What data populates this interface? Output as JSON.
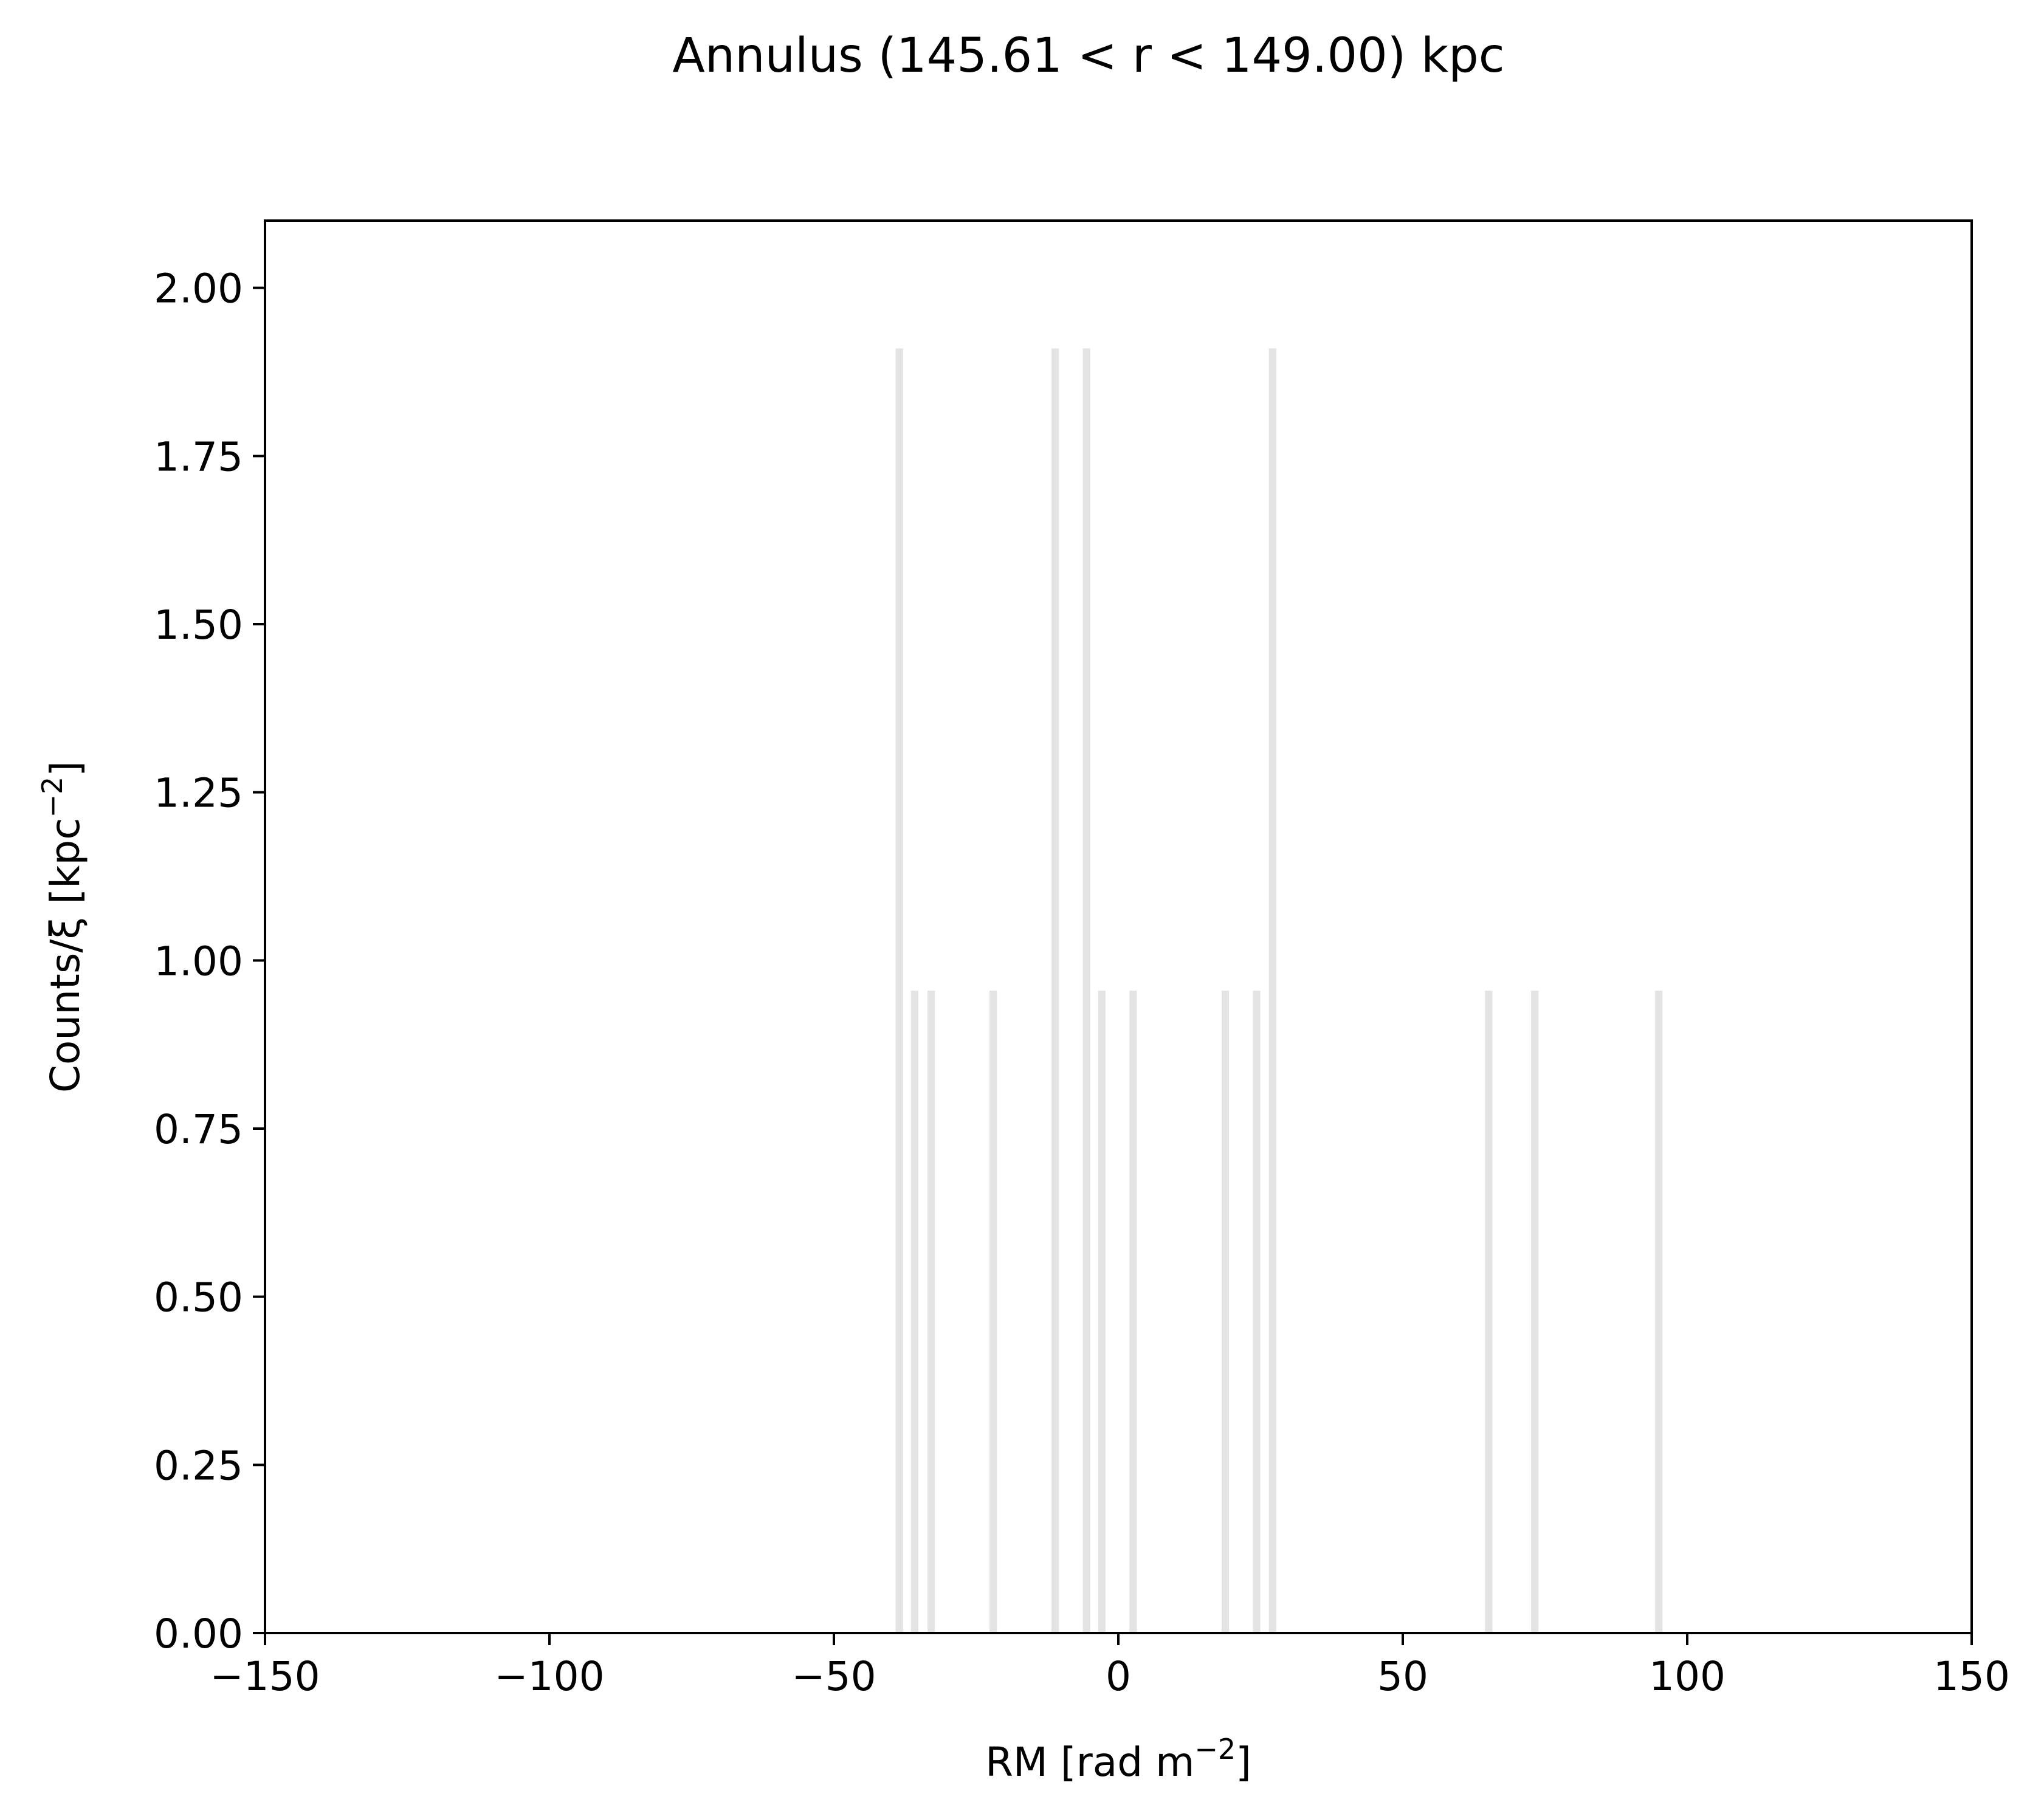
{
  "chart_data": {
    "type": "bar",
    "title": "Annulus (145.61 < r < 149.00) kpc",
    "xlabel": {
      "main": "RM [rad m",
      "sup": "−2",
      "end": "]"
    },
    "ylabel": {
      "main": "Counts/ξ [kpc",
      "sup": "−2",
      "end": "]"
    },
    "xlim": [
      -150,
      150
    ],
    "ylim": [
      0,
      2.1
    ],
    "xticks": [
      -150,
      -100,
      -50,
      0,
      50,
      100,
      150
    ],
    "xtick_labels": [
      "−150",
      "−100",
      "−50",
      "0",
      "50",
      "100",
      "150"
    ],
    "yticks": [
      0,
      0.25,
      0.5,
      0.75,
      1.0,
      1.25,
      1.5,
      1.75,
      2.0
    ],
    "ytick_labels": [
      "0.00",
      "0.25",
      "0.50",
      "0.75",
      "1.00",
      "1.25",
      "1.50",
      "1.75",
      "2.00"
    ],
    "grid": false,
    "bar_width": 1.3,
    "bar_color": "#e4e4e4",
    "bars": [
      {
        "x": -38.5,
        "y": 1.91
      },
      {
        "x": -35.8,
        "y": 0.955
      },
      {
        "x": -32.9,
        "y": 0.955
      },
      {
        "x": -22.0,
        "y": 0.955
      },
      {
        "x": -11.1,
        "y": 1.91
      },
      {
        "x": -5.6,
        "y": 1.91
      },
      {
        "x": -2.9,
        "y": 0.955
      },
      {
        "x": 2.6,
        "y": 0.955
      },
      {
        "x": 18.8,
        "y": 0.955
      },
      {
        "x": 24.3,
        "y": 0.955
      },
      {
        "x": 27.1,
        "y": 1.91
      },
      {
        "x": 65.1,
        "y": 0.955
      },
      {
        "x": 73.2,
        "y": 0.955
      },
      {
        "x": 95.0,
        "y": 0.955
      }
    ]
  }
}
